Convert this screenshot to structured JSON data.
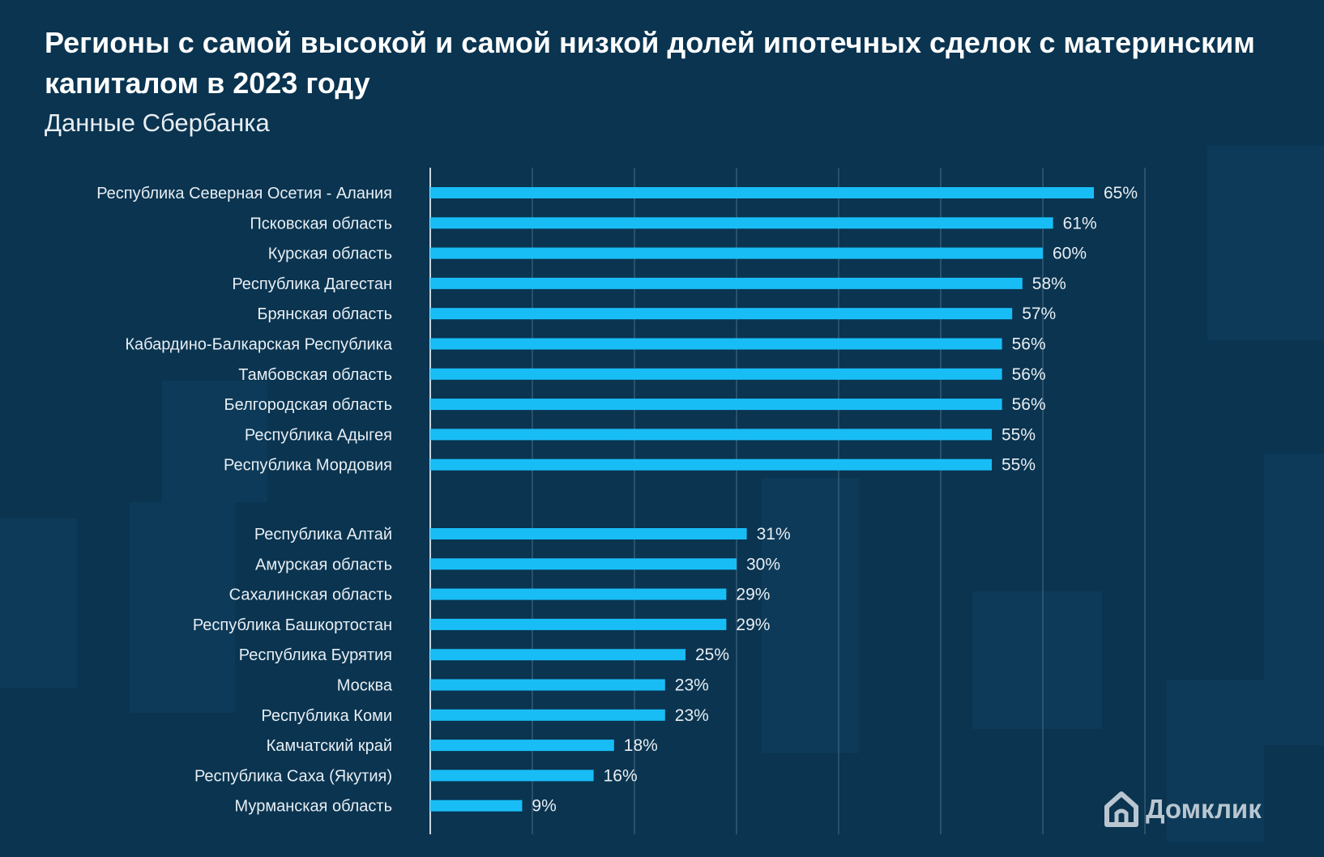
{
  "title": "Регионы с самой высокой и самой низкой долей ипотечных сделок с материнским капиталом в 2023 году",
  "subtitle": "Данные Сбербанка",
  "logo": {
    "text": "Домклик",
    "icon": "house-logo-icon"
  },
  "colors": {
    "background": "#0a3450",
    "bar": "#19bdf6",
    "label": "#e8eef3",
    "grid": "#5a7a90"
  },
  "chart_data": {
    "type": "bar",
    "orientation": "horizontal",
    "xlim": [
      0,
      70
    ],
    "grid": true,
    "groups": [
      {
        "name": "highest",
        "categories": [
          "Республика Северная Осетия - Алания",
          "Псковская область",
          "Курская область",
          "Республика Дагестан",
          "Брянская область",
          "Кабардино-Балкарская Республика",
          "Тамбовская область",
          "Белгородская область",
          "Республика Адыгея",
          "Республика Мордовия"
        ],
        "values": [
          65,
          61,
          60,
          58,
          57,
          56,
          56,
          56,
          55,
          55
        ],
        "value_labels": [
          "65%",
          "61%",
          "60%",
          "58%",
          "57%",
          "56%",
          "56%",
          "56%",
          "55%",
          "55%"
        ]
      },
      {
        "name": "lowest",
        "categories": [
          "Республика Алтай",
          "Амурская область",
          "Сахалинская область",
          "Республика Башкортостан",
          "Республика Бурятия",
          "Москва",
          "Республика Коми",
          "Камчатский край",
          "Республика Саха (Якутия)",
          "Мурманская область"
        ],
        "values": [
          31,
          30,
          29,
          29,
          25,
          23,
          23,
          18,
          16,
          9
        ],
        "value_labels": [
          "31%",
          "30%",
          "29%",
          "29%",
          "25%",
          "23%",
          "23%",
          "18%",
          "16%",
          "9%"
        ]
      }
    ]
  }
}
